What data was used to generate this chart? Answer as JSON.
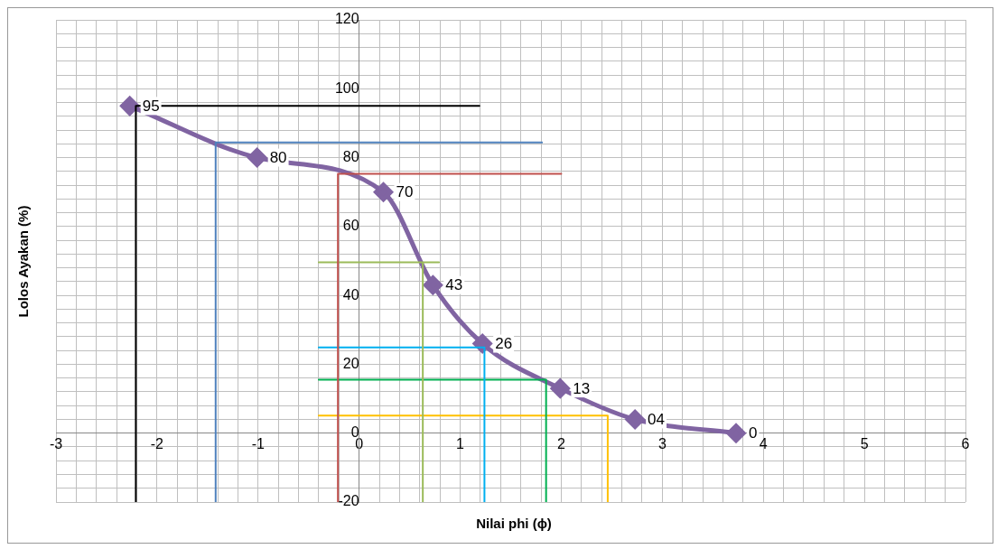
{
  "chart_data": {
    "type": "line",
    "xlabel": "Nilai phi (ϕ)",
    "ylabel": "Lolos Ayakan (%)",
    "xlim": [
      -3,
      6
    ],
    "ylim": [
      -20,
      120
    ],
    "xticks": [
      -3,
      {
        "value": -2.8,
        "label": null
      },
      {
        "value": -2.6,
        "label": null
      },
      {
        "value": -2.4,
        "label": null
      },
      {
        "value": -2.2,
        "label": null
      },
      -2,
      {
        "value": -1.8,
        "label": null
      },
      {
        "value": -1.6,
        "label": null
      },
      {
        "value": -1.4,
        "label": null
      },
      {
        "value": -1.2,
        "label": null
      },
      -1,
      {
        "value": -0.8,
        "label": null
      },
      {
        "value": -0.6,
        "label": null
      },
      {
        "value": -0.4,
        "label": null
      },
      {
        "value": -0.2,
        "label": null
      },
      0,
      {
        "value": 0.2,
        "label": null
      },
      {
        "value": 0.4,
        "label": null
      },
      {
        "value": 0.6,
        "label": null
      },
      {
        "value": 0.8,
        "label": null
      },
      1,
      {
        "value": 1.2,
        "label": null
      },
      {
        "value": 1.4,
        "label": null
      },
      {
        "value": 1.6,
        "label": null
      },
      {
        "value": 1.8,
        "label": null
      },
      2,
      {
        "value": 2.2,
        "label": null
      },
      {
        "value": 2.4,
        "label": null
      },
      {
        "value": 2.6,
        "label": null
      },
      {
        "value": 2.8,
        "label": null
      },
      3,
      {
        "value": 3.2,
        "label": null
      },
      {
        "value": 3.4,
        "label": null
      },
      {
        "value": 3.6,
        "label": null
      },
      {
        "value": 3.8,
        "label": null
      },
      4,
      {
        "value": 4.2,
        "label": null
      },
      {
        "value": 4.4,
        "label": null
      },
      {
        "value": 4.6,
        "label": null
      },
      {
        "value": 4.8,
        "label": null
      },
      5,
      {
        "value": 5.2,
        "label": null
      },
      {
        "value": 5.4,
        "label": null
      },
      {
        "value": 5.6,
        "label": null
      },
      {
        "value": 5.8,
        "label": null
      },
      6
    ],
    "yticks": [
      -20,
      {
        "value": -16,
        "label": null
      },
      {
        "value": -12,
        "label": null
      },
      {
        "value": -8,
        "label": null
      },
      {
        "value": -4,
        "label": null
      },
      0,
      {
        "value": 4,
        "label": null
      },
      {
        "value": 8,
        "label": null
      },
      {
        "value": 12,
        "label": null
      },
      {
        "value": 16,
        "label": null
      },
      20,
      {
        "value": 24,
        "label": null
      },
      {
        "value": 28,
        "label": null
      },
      {
        "value": 32,
        "label": null
      },
      {
        "value": 36,
        "label": null
      },
      40,
      {
        "value": 44,
        "label": null
      },
      {
        "value": 48,
        "label": null
      },
      {
        "value": 52,
        "label": null
      },
      {
        "value": 56,
        "label": null
      },
      60,
      {
        "value": 64,
        "label": null
      },
      {
        "value": 68,
        "label": null
      },
      {
        "value": 72,
        "label": null
      },
      {
        "value": 76,
        "label": null
      },
      80,
      {
        "value": 84,
        "label": null
      },
      {
        "value": 88,
        "label": null
      },
      {
        "value": 92,
        "label": null
      },
      {
        "value": 96,
        "label": null
      },
      100,
      {
        "value": 104,
        "label": null
      },
      {
        "value": 108,
        "label": null
      },
      {
        "value": 112,
        "label": null
      },
      {
        "value": 116,
        "label": null
      },
      120
    ],
    "grid": true,
    "series": [
      {
        "color": "#000000",
        "marker": "none",
        "x": [
          -2.21,
          -2.21,
          1.19
        ],
        "values": [
          -20,
          95,
          95
        ]
      },
      {
        "color": "#4f81bd",
        "marker": "none",
        "x": [
          -1.42,
          -1.42,
          1.81
        ],
        "values": [
          -20,
          84.4,
          84.4
        ]
      },
      {
        "color": "#c0504d",
        "marker": "none",
        "x": [
          -0.21,
          -0.21,
          2.0
        ],
        "values": [
          -20,
          75.3,
          75.3
        ]
      },
      {
        "color": "#9bbb59",
        "marker": "none",
        "x": [
          -0.4,
          0.63,
          0.79,
          0.63,
          0.63
        ],
        "values": [
          49.6,
          49.6,
          49.6,
          49.6,
          -20
        ]
      },
      {
        "color": "#00b0f0",
        "marker": "none",
        "x": [
          -0.4,
          1.24,
          1.24
        ],
        "values": [
          24.9,
          24.9,
          -20
        ]
      },
      {
        "color": "#00b050",
        "marker": "none",
        "x": [
          -0.4,
          1.85,
          1.85
        ],
        "values": [
          15.5,
          15.5,
          -20
        ]
      },
      {
        "color": "#ffc000",
        "marker": "none",
        "x": [
          -0.4,
          2.46,
          2.46
        ],
        "values": [
          5.1,
          5.1,
          -20
        ]
      },
      {
        "color": "#8064a2",
        "marker": "diamond",
        "x": [
          -2.27,
          -1.01,
          0.24,
          0.73,
          1.22,
          1.99,
          2.73,
          3.73
        ],
        "values": [
          95,
          80,
          70,
          43,
          26,
          13,
          4,
          0
        ],
        "value_labels": [
          "95",
          "80",
          "70",
          "43",
          "26",
          "13",
          "04",
          "0"
        ]
      }
    ]
  }
}
